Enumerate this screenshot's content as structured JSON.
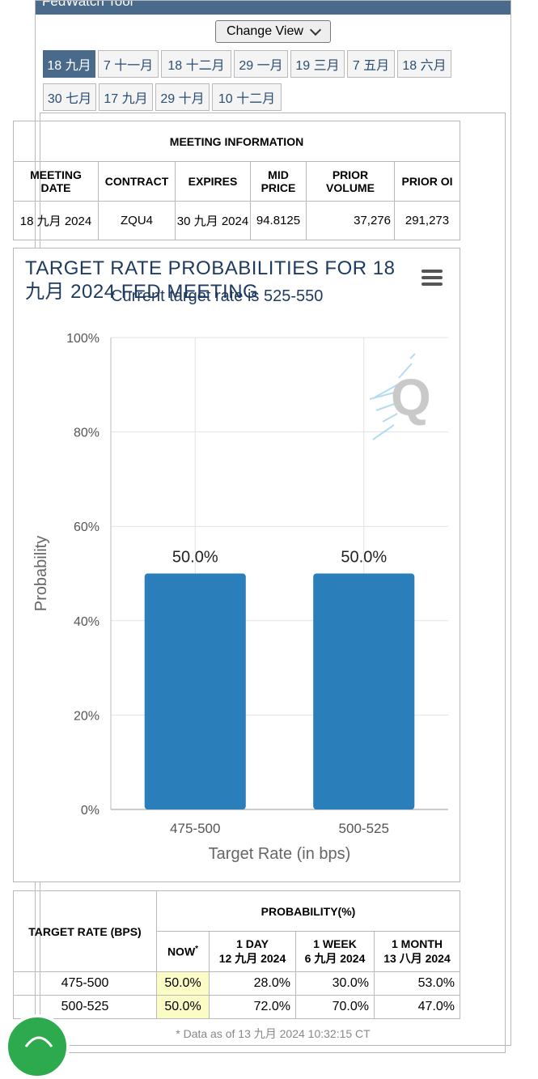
{
  "tool_title": "FedWatch Tool",
  "change_view_label": "Change View",
  "tabs": [
    "18 九月",
    "7 十一月",
    "18 十二月",
    "29 一月",
    "19 三月",
    "7 五月",
    "18 六月",
    "30 七月",
    "17 九月",
    "29 十月",
    "10 十二月"
  ],
  "active_tab": "18 九月",
  "meeting_info": {
    "title": "MEETING INFORMATION",
    "headers": [
      "MEETING DATE",
      "CONTRACT",
      "EXPIRES",
      "MID PRICE",
      "PRIOR VOLUME",
      "PRIOR OI"
    ],
    "row": [
      "18 九月 2024",
      "ZQU4",
      "30 九月 2024",
      "94.8125",
      "37,276",
      "291,273"
    ]
  },
  "chart_data": {
    "type": "bar",
    "title": "TARGET RATE PROBABILITIES FOR 18 九月 2024 FED MEETING",
    "subtitle": "Current target rate is 525-550",
    "categories": [
      "475-500",
      "500-525"
    ],
    "values": [
      50.0,
      50.0
    ],
    "data_labels": [
      "50.0%",
      "50.0%"
    ],
    "xlabel": "Target Rate (in bps)",
    "ylabel": "Probability",
    "ylim": [
      0,
      100
    ],
    "yticks": [
      "0%",
      "20%",
      "40%",
      "60%",
      "80%",
      "100%"
    ],
    "bar_color": "#2a7fba",
    "grid": true
  },
  "prob_table": {
    "col_target": "TARGET RATE (BPS)",
    "col_prob": "PROBABILITY(%)",
    "sub_headers": [
      {
        "line1": "NOW",
        "line2": ""
      },
      {
        "line1": "1 DAY",
        "line2": "12 九月 2024"
      },
      {
        "line1": "1 WEEK",
        "line2": "6 九月 2024"
      },
      {
        "line1": "1 MONTH",
        "line2": "13 八月 2024"
      }
    ],
    "now_mark": "*",
    "rows": [
      {
        "rate": "475-500",
        "now": "50.0%",
        "day": "28.0%",
        "week": "30.0%",
        "month": "53.0%"
      },
      {
        "rate": "500-525",
        "now": "50.0%",
        "day": "72.0%",
        "week": "70.0%",
        "month": "47.0%"
      }
    ]
  },
  "footnote": "* Data as of 13 九月 2024 10:32:15 CT"
}
